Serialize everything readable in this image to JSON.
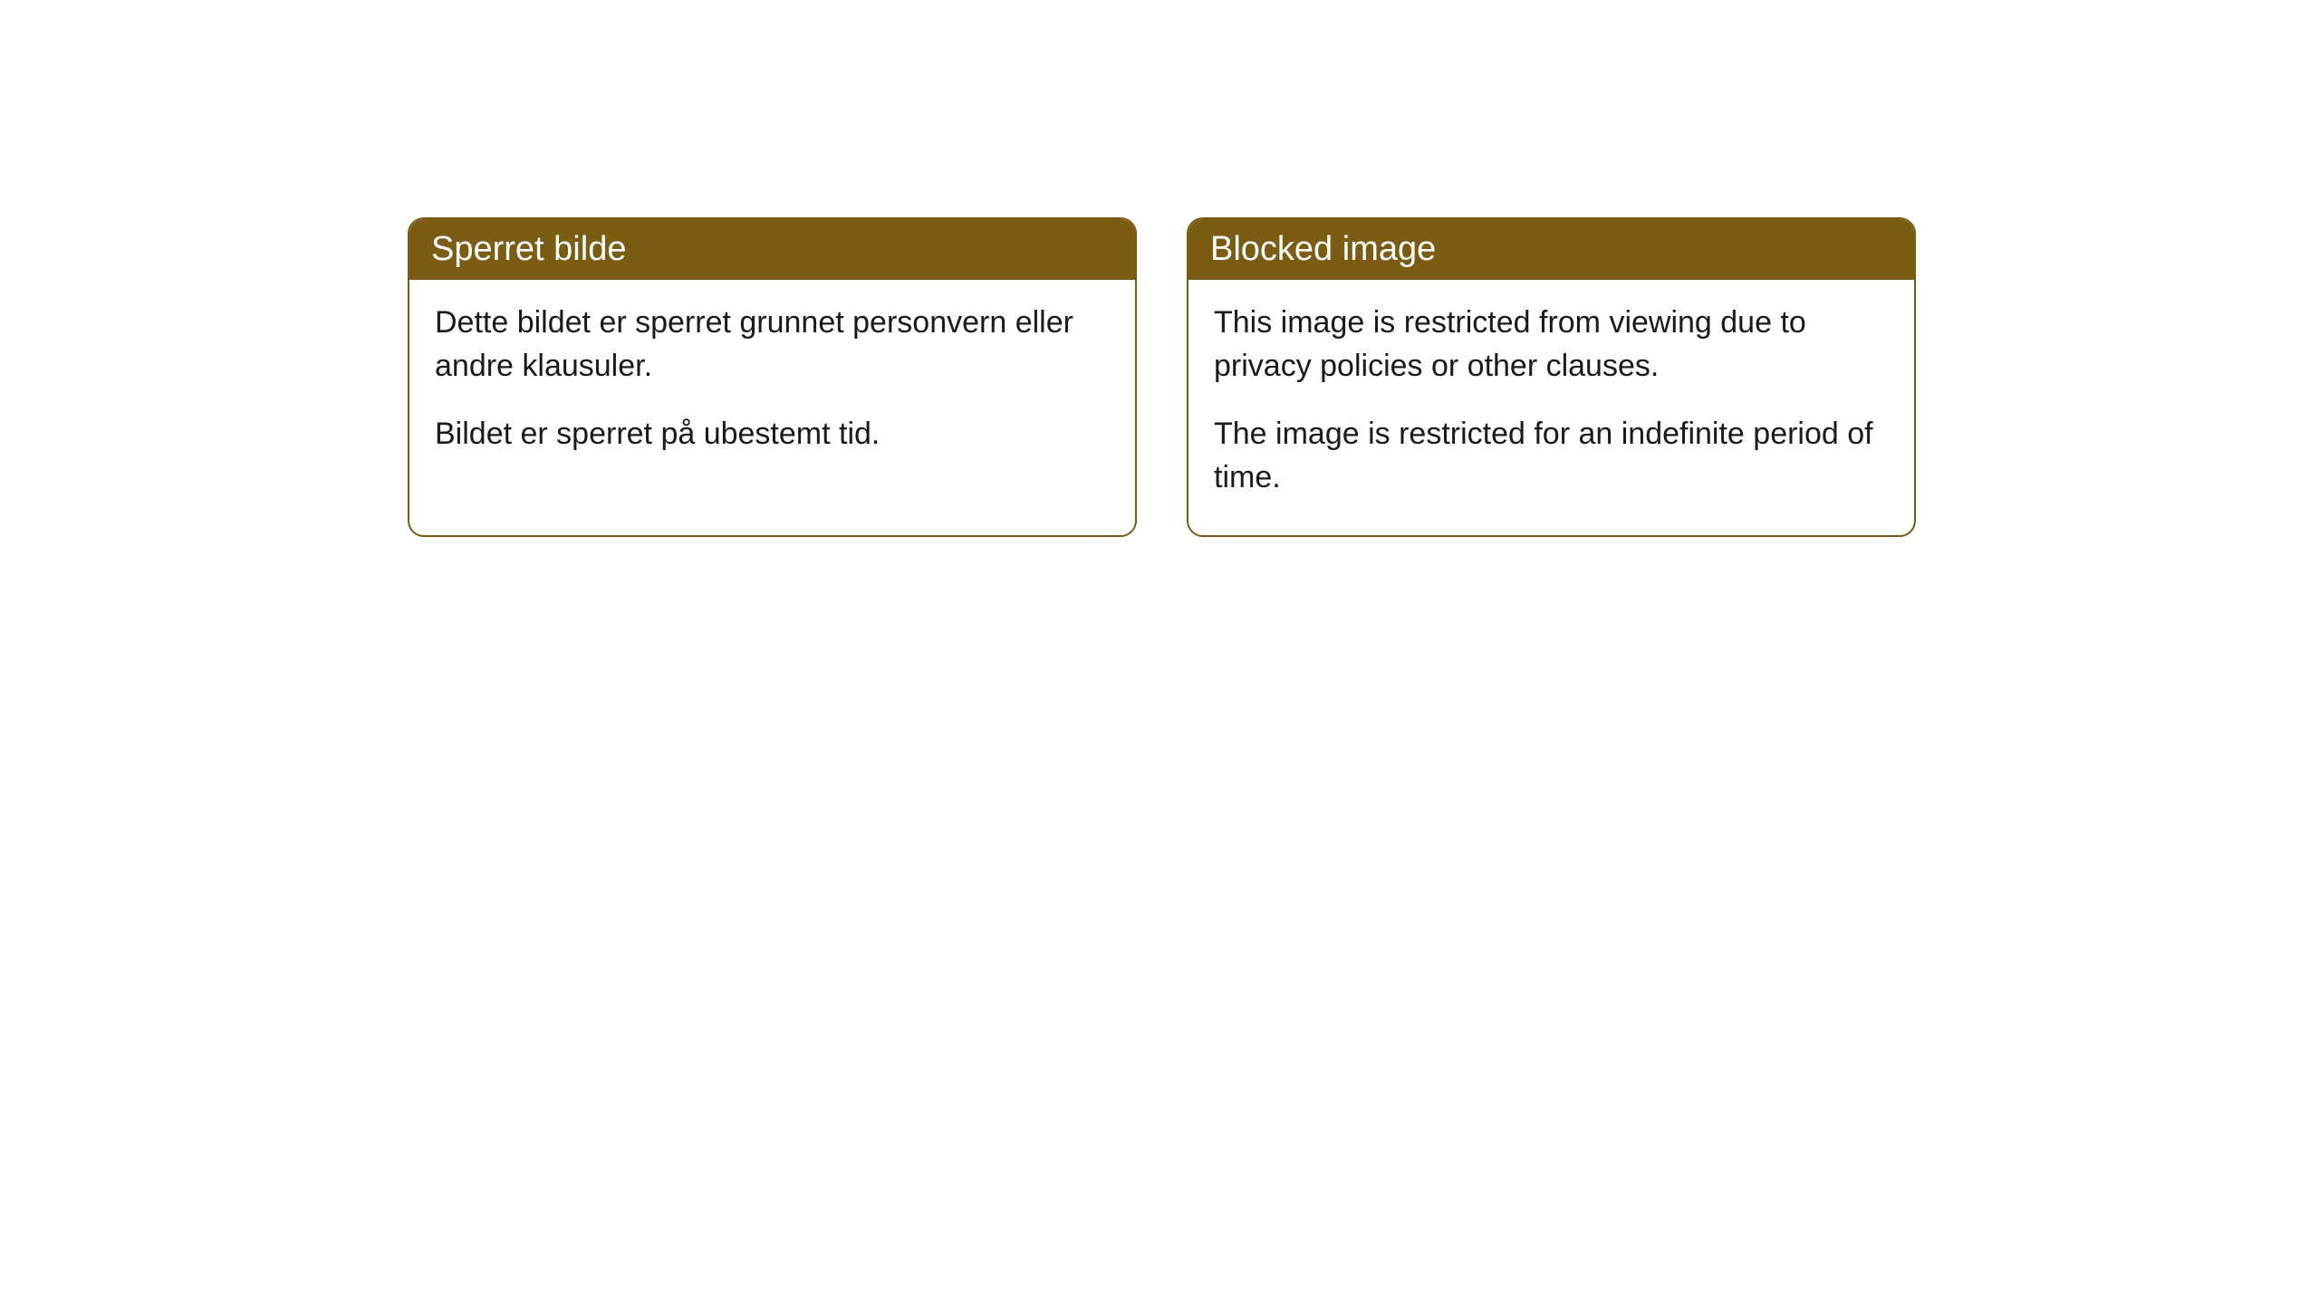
{
  "cards": [
    {
      "title": "Sperret bilde",
      "paragraph1": "Dette bildet er sperret grunnet personvern eller andre klausuler.",
      "paragraph2": "Bildet er sperret på ubestemt tid."
    },
    {
      "title": "Blocked image",
      "paragraph1": "This image is restricted from viewing due to privacy policies or other clauses.",
      "paragraph2": "The image is restricted for an indefinite period of time."
    }
  ],
  "colors": {
    "header_bg": "#7a5c13",
    "header_text": "#ffffff",
    "border": "#7a5c13",
    "body_text": "#1a1a1a",
    "page_bg": "#ffffff"
  }
}
